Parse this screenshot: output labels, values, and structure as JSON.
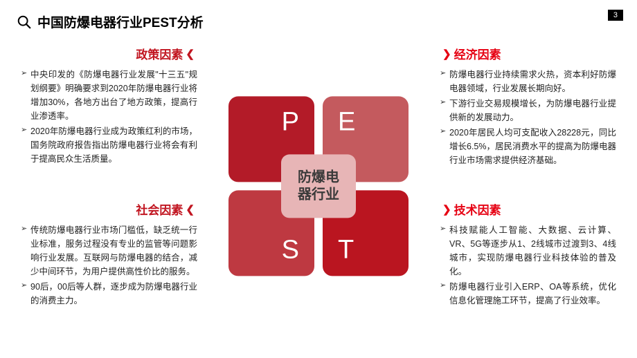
{
  "page_number": "3",
  "title": "中国防爆电器行业PEST分析",
  "colors": {
    "p_block": "#b31b28",
    "e_block": "#c45a5e",
    "s_block": "#be3941",
    "t_block": "#ba1520",
    "center_bg": "#e7b5b6",
    "center_text": "#3a3a3a",
    "title_left": "#c11520",
    "title_right": "#e60012"
  },
  "center_label": "防爆电\n器行业",
  "quadrants": {
    "p": {
      "letter": "P",
      "title": "政策因素",
      "bullets": [
        "中央印发的《防爆电器行业发展\"十三五\"规划纲要》明确要求到2020年防爆电器行业将增加30%，各地方出台了地方政策，提高行业渗透率。",
        "2020年防爆电器行业成为政策红利的市场，国务院政府报告指出防爆电器行业将会有利于提高民众生活质量。"
      ]
    },
    "e": {
      "letter": "E",
      "title": "经济因素",
      "bullets": [
        "防爆电器行业持续需求火热，资本利好防爆电器领域，行业发展长期向好。",
        "下游行业交易规模增长，为防爆电器行业提供新的发展动力。",
        "2020年居民人均可支配收入28228元，同比增长6.5%，居民消费水平的提高为防爆电器行业市场需求提供经济基础。"
      ]
    },
    "s": {
      "letter": "S",
      "title": "社会因素",
      "bullets": [
        "传统防爆电器行业市场门槛低，缺乏统一行业标准，服务过程没有专业的监管等问题影响行业发展。互联网与防爆电器的结合，减少中间环节，为用户提供高性价比的服务。",
        "90后，00后等人群，逐步成为防爆电器行业的消费主力。"
      ]
    },
    "t": {
      "letter": "T",
      "title": "技术因素",
      "bullets": [
        "科技赋能人工智能、大数据、云计算、VR、5G等逐步从1、2线城市过渡到3、4线城市，实现防爆电器行业科技体验的普及化。",
        "防爆电器行业引入ERP、OA等系统，优化信息化管理施工环节，提高了行业效率。"
      ]
    }
  }
}
